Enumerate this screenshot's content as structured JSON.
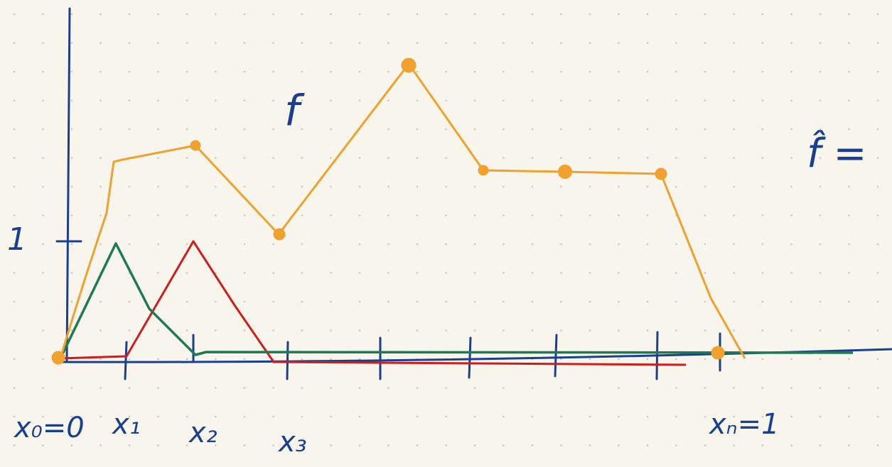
{
  "labels": {
    "one": "1",
    "f": "f",
    "f_hat": "f̂ =",
    "x0": "x₀=0",
    "x1": "x₁",
    "x2": "x₂",
    "x3": "x₃",
    "xn": "xₙ=1"
  }
}
